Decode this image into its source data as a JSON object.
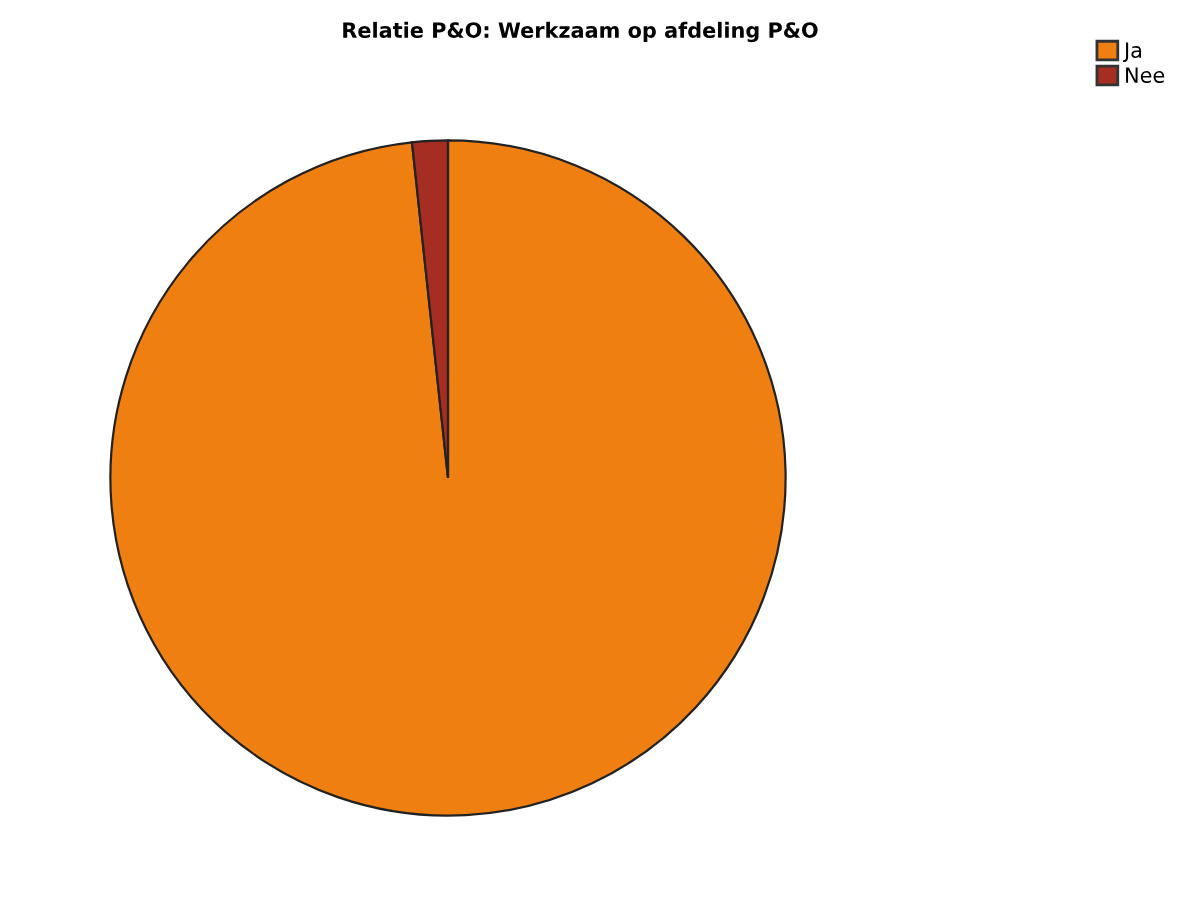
{
  "chart_data": {
    "type": "pie",
    "title": "Relatie P&O: Werkzaam op afdeling P&O",
    "categories": [
      "Ja",
      "Nee"
    ],
    "values": [
      98.3,
      1.7
    ],
    "colors": [
      "#f07f12",
      "#a52d22"
    ],
    "legend": "top right"
  }
}
